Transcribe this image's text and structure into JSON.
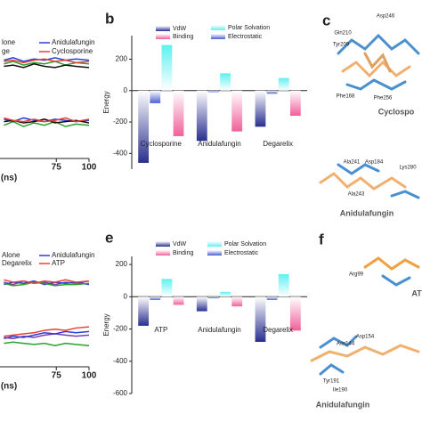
{
  "chart_data": [
    {
      "type": "line",
      "x": [
        35,
        42,
        50,
        58,
        66,
        74,
        82,
        90,
        100
      ],
      "xlim": [
        32,
        100
      ],
      "xticks": [
        75,
        100
      ],
      "xlabel": "(ns)",
      "ylim": [
        0,
        1
      ],
      "series": [
        {
          "name": "lone",
          "color": "#2ca02c",
          "values": [
            0.77,
            0.79,
            0.76,
            0.78,
            0.77,
            0.79,
            0.76,
            0.78,
            0.77
          ]
        },
        {
          "name": "Anidulafungin",
          "color": "#2b3fd6",
          "values": [
            0.8,
            0.82,
            0.79,
            0.81,
            0.8,
            0.82,
            0.8,
            0.81,
            0.8
          ]
        },
        {
          "name": "ge",
          "color": "#111111",
          "values": [
            0.75,
            0.76,
            0.74,
            0.77,
            0.75,
            0.74,
            0.76,
            0.75,
            0.74
          ]
        },
        {
          "name": "Cyclosporine",
          "color": "#e8413a",
          "values": [
            0.79,
            0.8,
            0.78,
            0.8,
            0.81,
            0.79,
            0.8,
            0.78,
            0.79
          ]
        },
        {
          "color": "#2ca02c",
          "values": [
            0.27,
            0.3,
            0.26,
            0.29,
            0.27,
            0.3,
            0.26,
            0.28,
            0.27
          ]
        },
        {
          "color": "#2b3fd6",
          "values": [
            0.32,
            0.3,
            0.33,
            0.31,
            0.3,
            0.32,
            0.31,
            0.3,
            0.31
          ]
        },
        {
          "color": "#111111",
          "values": [
            0.3,
            0.31,
            0.29,
            0.3,
            0.32,
            0.29,
            0.3,
            0.31,
            0.29
          ]
        },
        {
          "color": "#e8413a",
          "values": [
            0.33,
            0.31,
            0.3,
            0.32,
            0.3,
            0.31,
            0.33,
            0.3,
            0.32
          ]
        }
      ]
    },
    {
      "type": "bar",
      "panel_label": "b",
      "ylabel": "Energy",
      "categories": [
        "Cyclosporine",
        "Anidulafungin",
        "Degarelix"
      ],
      "ylim": [
        -500,
        350
      ],
      "yticks": [
        200,
        0,
        -200,
        -400
      ],
      "series": [
        {
          "name": "VdW",
          "color": "#2a2f8f",
          "values": [
            -460,
            -320,
            -230
          ]
        },
        {
          "name": "Electrostatic",
          "color": "#4a5fd0",
          "values": [
            -80,
            -10,
            -20
          ]
        },
        {
          "name": "Polar Solvation",
          "color": "#5ef0f0",
          "values": [
            290,
            110,
            80
          ]
        },
        {
          "name": "Binding",
          "color": "#f0609a",
          "values": [
            -290,
            -260,
            -160
          ]
        }
      ]
    },
    {
      "type": "line",
      "x": [
        35,
        42,
        50,
        58,
        66,
        74,
        82,
        90,
        100
      ],
      "xlim": [
        32,
        100
      ],
      "xticks": [
        75,
        100
      ],
      "xlabel": "(ns)",
      "ylim": [
        0,
        1
      ],
      "series": [
        {
          "name": "Alone",
          "color": "#7a3fb0",
          "values": [
            0.72,
            0.7,
            0.73,
            0.71,
            0.72,
            0.7,
            0.72,
            0.71,
            0.73
          ]
        },
        {
          "name": "Anidulafungin",
          "color": "#2b3fd6",
          "values": [
            0.7,
            0.72,
            0.71,
            0.73,
            0.7,
            0.72,
            0.71,
            0.72,
            0.7
          ]
        },
        {
          "name": "Degarelix",
          "color": "#2ca02c",
          "values": [
            0.71,
            0.69,
            0.7,
            0.72,
            0.71,
            0.69,
            0.7,
            0.7,
            0.71
          ]
        },
        {
          "name": "ATP",
          "color": "#e8413a",
          "values": [
            0.74,
            0.72,
            0.73,
            0.71,
            0.73,
            0.72,
            0.74,
            0.72,
            0.73
          ]
        },
        {
          "color": "#7a3fb0",
          "values": [
            0.25,
            0.24,
            0.26,
            0.25,
            0.27,
            0.28,
            0.27,
            0.26,
            0.27
          ]
        },
        {
          "color": "#2b3fd6",
          "values": [
            0.24,
            0.26,
            0.25,
            0.27,
            0.29,
            0.28,
            0.3,
            0.29,
            0.3
          ]
        },
        {
          "color": "#2ca02c",
          "values": [
            0.2,
            0.21,
            0.2,
            0.19,
            0.2,
            0.18,
            0.2,
            0.19,
            0.18
          ]
        },
        {
          "color": "#e8413a",
          "values": [
            0.26,
            0.27,
            0.28,
            0.29,
            0.31,
            0.32,
            0.31,
            0.33,
            0.34
          ]
        }
      ]
    },
    {
      "type": "bar",
      "panel_label": "e",
      "ylabel": "Energy",
      "categories": [
        "ATP",
        "Anidulafungin",
        "Degarelix"
      ],
      "ylim": [
        -600,
        250
      ],
      "yticks": [
        200,
        0,
        -200,
        -400,
        -600
      ],
      "series": [
        {
          "name": "VdW",
          "color": "#2a2f8f",
          "values": [
            -180,
            -90,
            -280
          ]
        },
        {
          "name": "Electrostatic",
          "color": "#4a5fd0",
          "values": [
            -20,
            -10,
            -20
          ]
        },
        {
          "name": "Polar Solvation",
          "color": "#5ef0f0",
          "values": [
            110,
            30,
            140
          ]
        },
        {
          "name": "Binding",
          "color": "#f0609a",
          "values": [
            -50,
            -60,
            -210
          ]
        }
      ]
    }
  ],
  "panel_c": {
    "panel_label": "c",
    "labels": [
      "Gln210",
      "Asp246",
      "Tyr209",
      "Phe168",
      "Phe256",
      "Cyclospo",
      "Ala241",
      "Asp184",
      "Lys280",
      "Ala243",
      "Anidulafungin"
    ]
  },
  "panel_f": {
    "panel_label": "f",
    "labels": [
      "Arg99",
      "AT",
      "Asp154",
      "Asn144",
      "Tyr191",
      "Ile190",
      "Anidulafungin"
    ]
  }
}
